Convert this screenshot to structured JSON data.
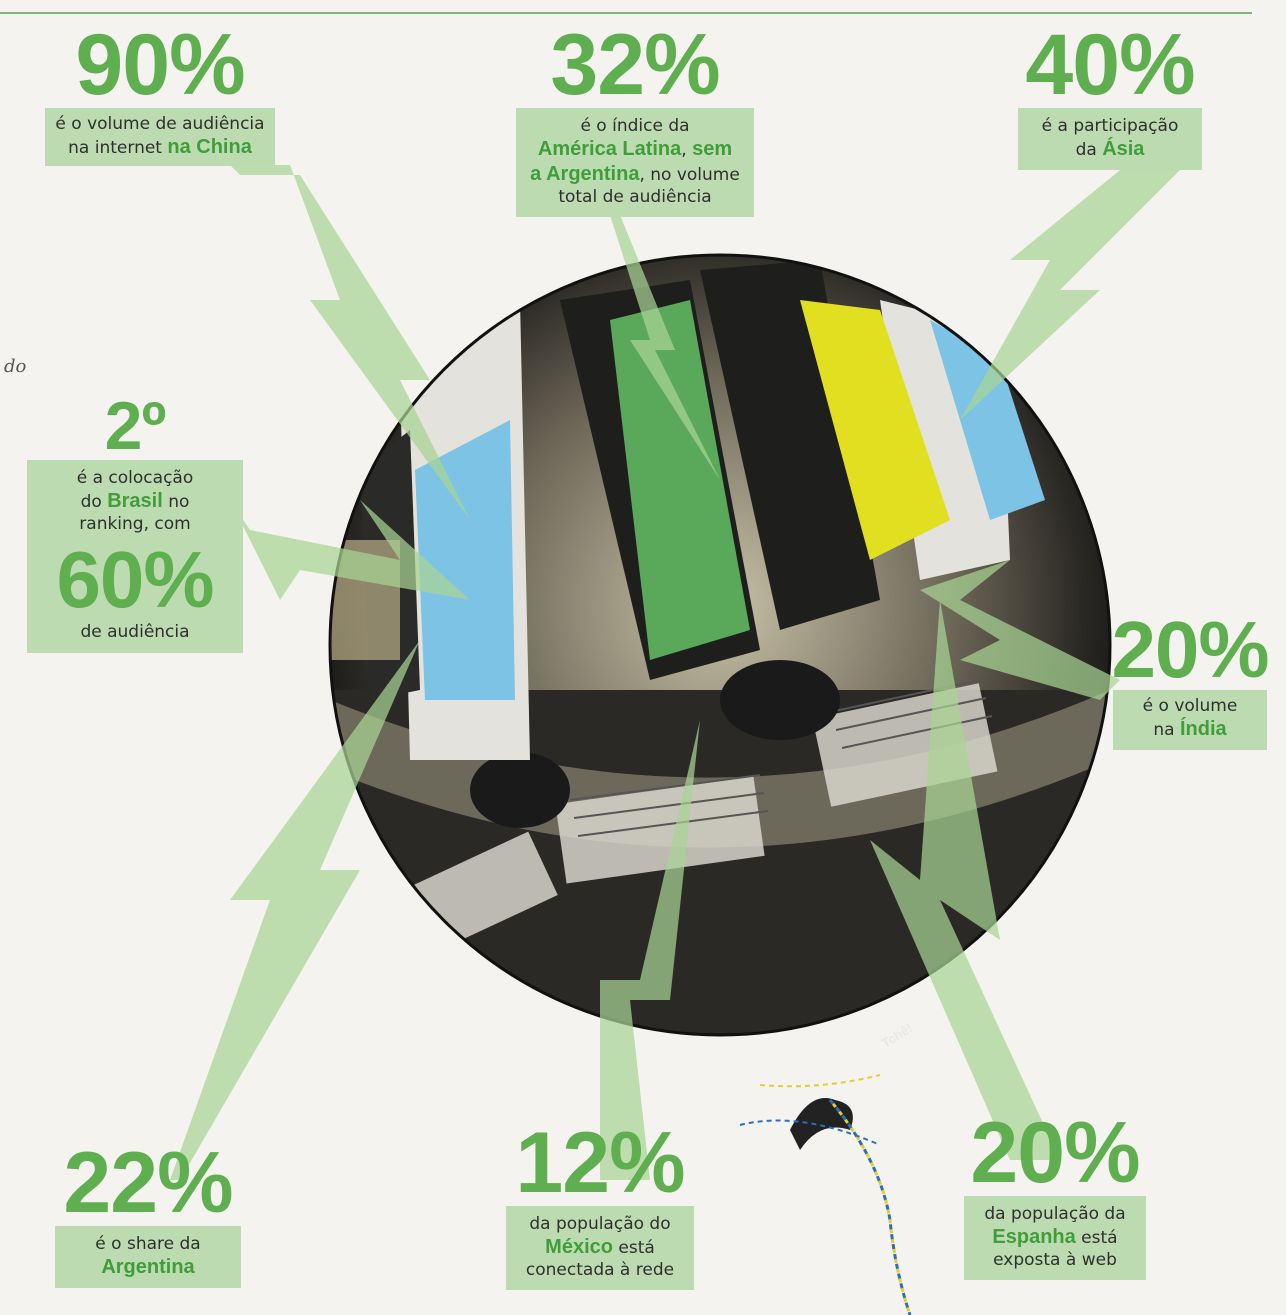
{
  "side_note": "do",
  "credit": "Tchê!",
  "stats": {
    "china": {
      "value": "90%",
      "l1": "é o volume de audiência",
      "l2_pre": "na internet ",
      "l2_hl": "na China"
    },
    "latam": {
      "value": "32%",
      "l1": "é o índice da",
      "l2_hl": "América Latina",
      "l2_mid": ", ",
      "l2_hl2": "sem",
      "l3_hl": "a Argentina",
      "l3_post": ", no volume",
      "l4": "total de audiência"
    },
    "asia": {
      "value": "40%",
      "l1": "é a participação",
      "l2_pre": "da ",
      "l2_hl": "Ásia"
    },
    "brasil": {
      "rank": "2º",
      "l1": "é a colocação",
      "l2_pre": "do ",
      "l2_hl": "Brasil",
      "l2_post": " no",
      "l3": "ranking, com",
      "value": "60%",
      "l4": "de audiência"
    },
    "india": {
      "value": "20%",
      "l1": "é o volume",
      "l2_pre": "na ",
      "l2_hl": "Índia"
    },
    "argentina": {
      "value": "22%",
      "l1": "é o share da",
      "l2_hl": "Argentina"
    },
    "mexico": {
      "value": "12%",
      "l1": "da população do",
      "l2_hl": "México",
      "l2_post": " está",
      "l3": "conectada à rede"
    },
    "espanha": {
      "value": "20%",
      "l1": "da população da",
      "l2_hl": "Espanha",
      "l2_post": " está",
      "l3": "exposta à web"
    }
  }
}
